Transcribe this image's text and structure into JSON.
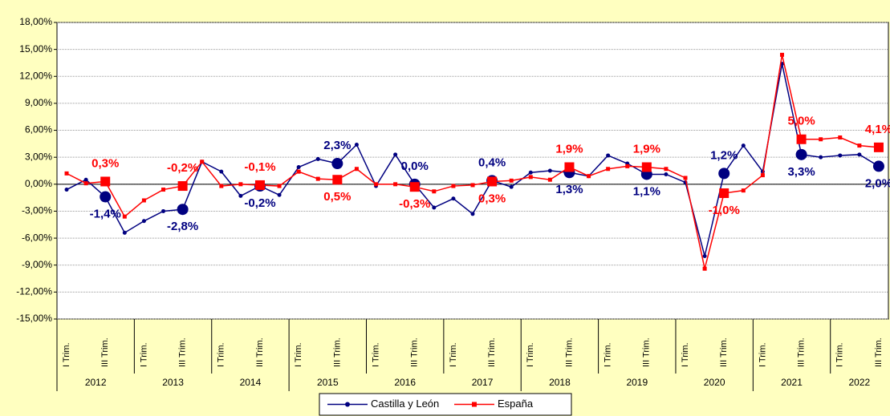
{
  "chart_data": {
    "type": "line",
    "categories": [
      "I Trim.",
      null,
      "III Trim.",
      null,
      "I Trim.",
      null,
      "III Trim.",
      null,
      "I Trim.",
      null,
      "III Trim.",
      null,
      "I Trim.",
      null,
      "III Trim.",
      null,
      "I Trim.",
      null,
      "III Trim.",
      null,
      "I Trim.",
      null,
      "III Trim.",
      null,
      "I Trim.",
      null,
      "III Trim.",
      null,
      "I Trim.",
      null,
      "III Trim.",
      null,
      "I Trim.",
      null,
      "III Trim.",
      null,
      "I Trim.",
      null,
      "III Trim.",
      null,
      "I Trim.",
      null,
      "III Trim."
    ],
    "years": [
      "2012",
      "2013",
      "2014",
      "2015",
      "2016",
      "2017",
      "2018",
      "2019",
      "2020",
      "2021",
      "2022"
    ],
    "series": [
      {
        "name": "Castilla y León",
        "color": "#000080",
        "values": [
          -0.6,
          0.5,
          -1.4,
          -5.4,
          -4.1,
          -3.0,
          -2.8,
          2.5,
          1.4,
          -1.3,
          -0.2,
          -1.2,
          1.9,
          2.8,
          2.3,
          4.4,
          -0.2,
          3.3,
          0.0,
          -2.6,
          -1.6,
          -3.3,
          0.4,
          -0.3,
          1.3,
          1.5,
          1.3,
          0.9,
          3.2,
          2.3,
          1.1,
          1.1,
          0.2,
          -8.0,
          1.2,
          4.3,
          1.4,
          13.4,
          3.3,
          3.0,
          3.2,
          3.3,
          2.0
        ],
        "value_labels": [
          null,
          null,
          "-1,4%",
          null,
          null,
          null,
          "-2,8%",
          null,
          null,
          null,
          "-0,2%",
          null,
          null,
          null,
          "2,3%",
          null,
          null,
          null,
          "0,0%",
          null,
          null,
          null,
          "0,4%",
          null,
          null,
          null,
          "1,3%",
          null,
          null,
          null,
          "1,1%",
          null,
          null,
          null,
          "1,2%",
          null,
          null,
          null,
          "3,3%",
          null,
          null,
          null,
          "2,0%"
        ]
      },
      {
        "name": "España",
        "color": "#ff0000",
        "values": [
          1.2,
          0.1,
          0.3,
          -3.6,
          -1.8,
          -0.6,
          -0.2,
          2.5,
          -0.2,
          0.0,
          -0.1,
          -0.2,
          1.4,
          0.6,
          0.5,
          1.7,
          0.0,
          0.0,
          -0.3,
          -0.8,
          -0.2,
          -0.1,
          0.3,
          0.4,
          0.8,
          0.5,
          1.9,
          0.9,
          1.7,
          2.0,
          1.9,
          1.7,
          0.7,
          -9.4,
          -1.0,
          -0.7,
          1.0,
          14.4,
          5.0,
          5.0,
          5.2,
          4.3,
          4.1
        ],
        "value_labels": [
          null,
          null,
          "0,3%",
          null,
          null,
          null,
          "-0,2%",
          null,
          null,
          null,
          "-0,1%",
          null,
          null,
          null,
          "0,5%",
          null,
          null,
          null,
          "-0,3%",
          null,
          null,
          null,
          "0,3%",
          null,
          null,
          null,
          "1,9%",
          null,
          null,
          null,
          "1,9%",
          null,
          null,
          null,
          "-1,0%",
          null,
          null,
          null,
          "5,0%",
          null,
          null,
          null,
          "4,1%"
        ]
      }
    ],
    "ylim": [
      -15,
      18
    ],
    "yticks": [
      {
        "value": -15,
        "label": "-15,00%"
      },
      {
        "value": -12,
        "label": "-12,00%"
      },
      {
        "value": -9,
        "label": "-9,00%"
      },
      {
        "value": -6,
        "label": "-6,00%"
      },
      {
        "value": -3,
        "label": "-3,00%"
      },
      {
        "value": 0,
        "label": "0,00%"
      },
      {
        "value": 3,
        "label": "3,00%"
      },
      {
        "value": 6,
        "label": "6,00%"
      },
      {
        "value": 9,
        "label": "9,00%"
      },
      {
        "value": 12,
        "label": "12,00%"
      },
      {
        "value": 15,
        "label": "15,00%"
      },
      {
        "value": 18,
        "label": "18,00%"
      }
    ],
    "grid": true
  }
}
